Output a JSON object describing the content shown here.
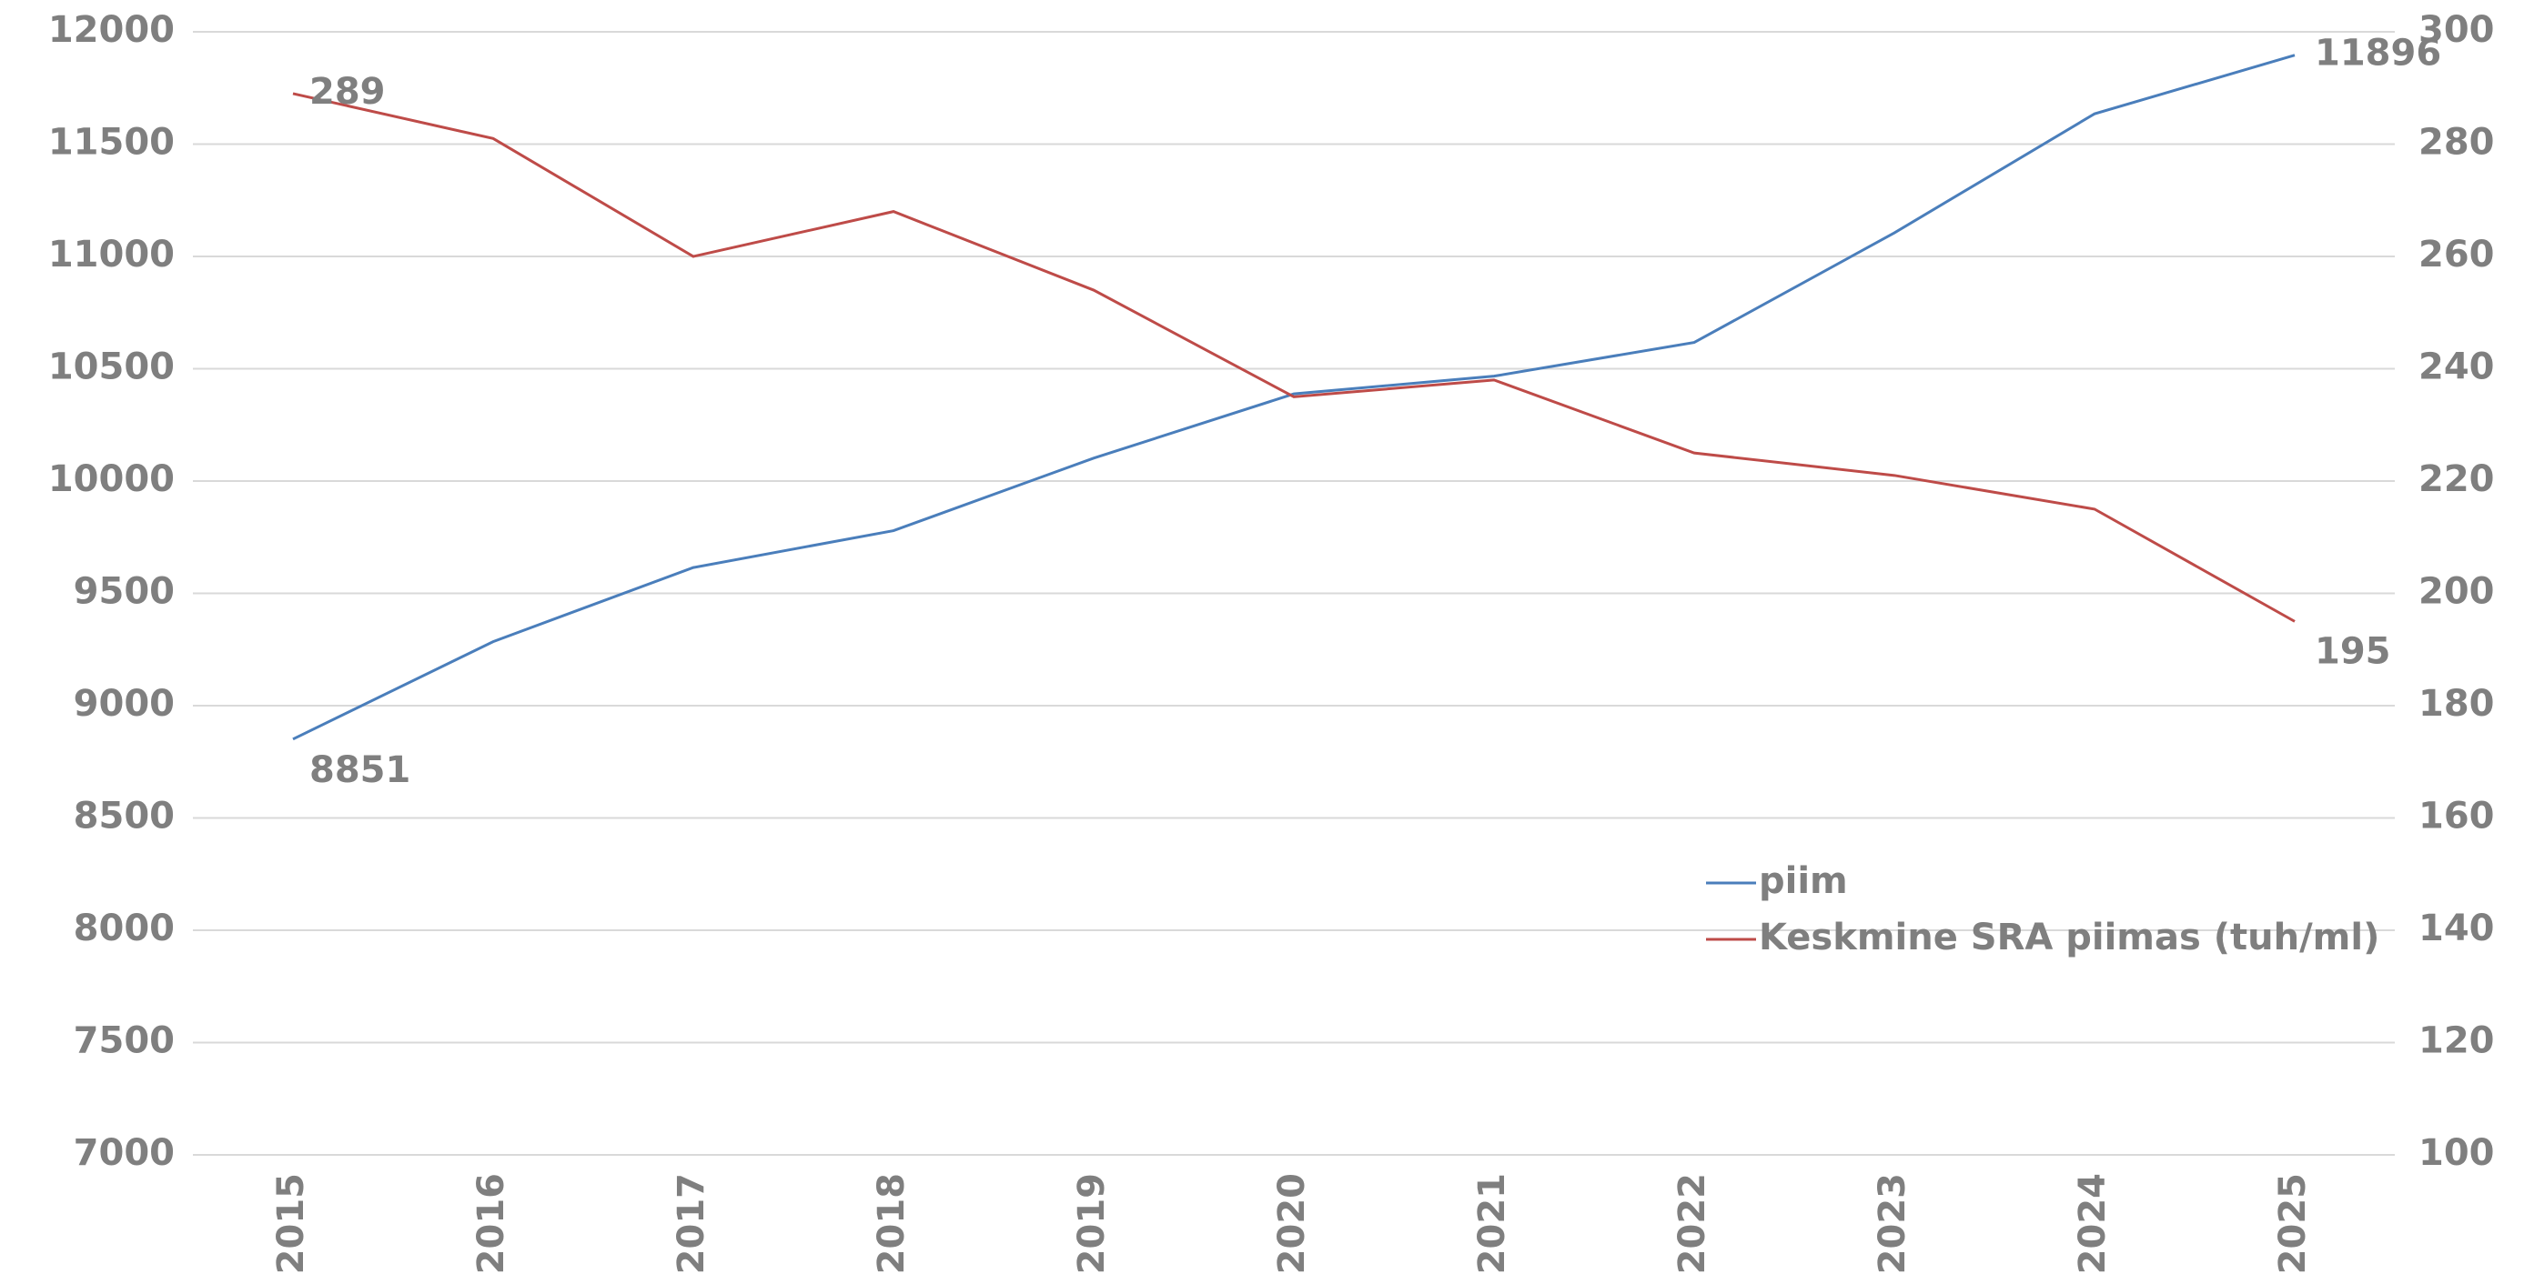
{
  "chart_data": {
    "type": "line",
    "categories": [
      "2015",
      "2016",
      "2017",
      "2018",
      "2019",
      "2020",
      "2021",
      "2022",
      "2023",
      "2024",
      "2025"
    ],
    "series": [
      {
        "name": "piim",
        "color": "#4a7ebb",
        "values": [
          8851,
          9285,
          9615,
          9779,
          10102,
          10388,
          10467,
          10617,
          11105,
          11635,
          11896
        ]
      },
      {
        "name": "Keskmine SRA piimas (tuh/ml)",
        "color": "#be4b48",
        "axis": "y2",
        "values": [
          289,
          281,
          260,
          268,
          254,
          235,
          238,
          225,
          221,
          215,
          195
        ]
      }
    ],
    "ylim": [
      7000,
      12000
    ],
    "yticks": [
      7000,
      7500,
      8000,
      8500,
      9000,
      9500,
      10000,
      10500,
      11000,
      11500,
      12000
    ],
    "y2lim": [
      100,
      300
    ],
    "y2ticks": [
      100,
      120,
      140,
      160,
      180,
      200,
      220,
      240,
      260,
      280,
      300
    ],
    "grid": true
  }
}
